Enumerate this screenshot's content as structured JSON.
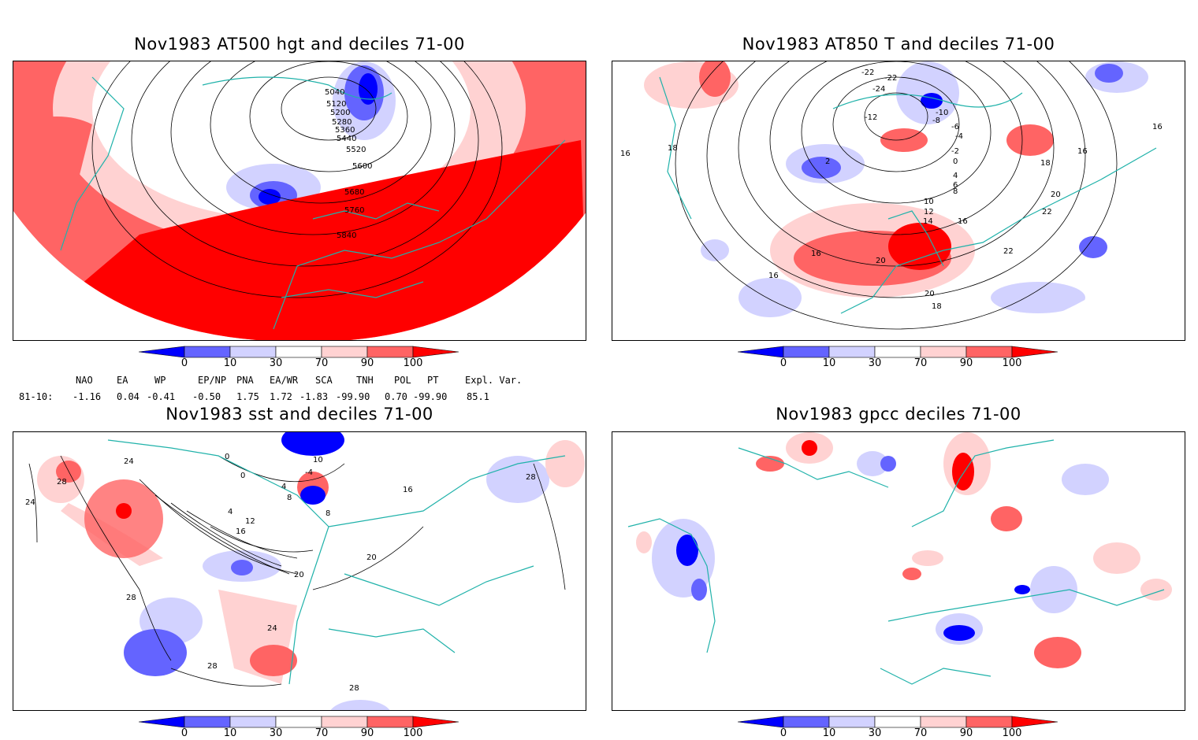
{
  "panels": {
    "top_left": {
      "title": "Nov1983 AT500 hgt and deciles 71-00",
      "contour_labels": [
        "5040",
        "5120",
        "5200",
        "5280",
        "5360",
        "5440",
        "5520",
        "5600",
        "5680",
        "5760",
        "5840"
      ]
    },
    "top_right": {
      "title": "Nov1983 AT850 T and deciles 71-00",
      "contour_labels": [
        "-22",
        "-22",
        "-24",
        "-12",
        "-10",
        "-8",
        "-6",
        "-4",
        "-2",
        "0",
        "2",
        "4",
        "6",
        "8",
        "10",
        "12",
        "14",
        "16",
        "16",
        "16",
        "16",
        "18",
        "18",
        "18",
        "20",
        "20",
        "20",
        "22",
        "22",
        "16",
        "16"
      ]
    },
    "bottom_left": {
      "title": "Nov1983 sst and deciles 71-00",
      "contour_labels": [
        "28",
        "24",
        "24",
        "0",
        "0",
        "-4",
        "4",
        "4",
        "8",
        "8",
        "10",
        "12",
        "16",
        "16",
        "20",
        "20",
        "24",
        "28",
        "28",
        "28",
        "28"
      ]
    },
    "bottom_right": {
      "title": "Nov1983 gpcc deciles 71-00",
      "contour_labels": []
    }
  },
  "colorbar": {
    "labels": [
      "0",
      "10",
      "30",
      "70",
      "90",
      "100"
    ],
    "colors": [
      "#0000ff",
      "#6464ff",
      "#d2d2ff",
      "#ffffff",
      "#ffd2d2",
      "#ff6464",
      "#ff0000"
    ]
  },
  "indices": {
    "headers": [
      "NAO",
      "EA",
      "WP",
      "EP/NP",
      "PNA",
      "EA/WR",
      "SCA",
      "TNH",
      "POL",
      "PT",
      "Expl. Var."
    ],
    "row_label": "81-10:",
    "values": [
      "-1.16",
      "0.04",
      "-0.41",
      "-0.50",
      "1.75",
      "1.72",
      "-1.83",
      "-99.90",
      "0.70",
      "-99.90",
      "85.1"
    ]
  },
  "colors": {
    "coast": "#20b2aa",
    "strong_pos": "#ff0000",
    "med_pos": "#ff6464",
    "light_pos": "#ffd2d2",
    "light_neg": "#d2d2ff",
    "med_neg": "#6464ff",
    "strong_neg": "#0000ff"
  }
}
